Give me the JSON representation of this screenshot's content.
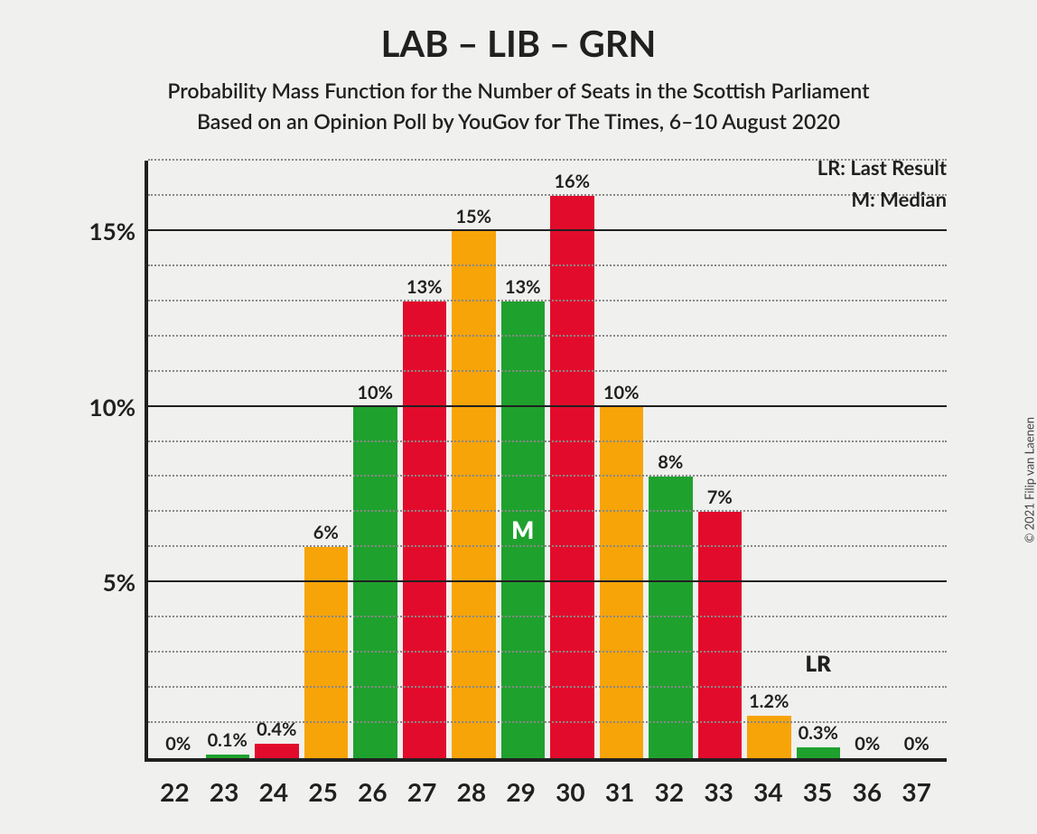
{
  "copyright": "© 2021 Filip van Laenen",
  "title": "LAB – LIB – GRN",
  "subtitle1": "Probability Mass Function for the Number of Seats in the Scottish Parliament",
  "subtitle2": "Based on an Opinion Poll by YouGov for The Times, 6–10 August 2020",
  "legend": {
    "lr": "LR: Last Result",
    "m": "M: Median"
  },
  "chart": {
    "type": "bar",
    "background_color": "#f0f0ee",
    "axis_color": "#202020",
    "text_color": "#202020",
    "minor_grid_color": "#888888",
    "colors": {
      "red": "#e30b2c",
      "orange": "#f7a409",
      "green": "#1fa12e"
    },
    "y": {
      "min": 0,
      "max": 17,
      "major_ticks": [
        5,
        10,
        15
      ],
      "minor_step": 1,
      "tick_labels": [
        "5%",
        "10%",
        "15%"
      ]
    },
    "categories": [
      "22",
      "23",
      "24",
      "25",
      "26",
      "27",
      "28",
      "29",
      "30",
      "31",
      "32",
      "33",
      "34",
      "35",
      "36",
      "37"
    ],
    "bars": [
      {
        "x": "22",
        "value": 0,
        "label": "0%",
        "color": "red"
      },
      {
        "x": "23",
        "value": 0.1,
        "label": "0.1%",
        "color": "green"
      },
      {
        "x": "24",
        "value": 0.4,
        "label": "0.4%",
        "color": "red"
      },
      {
        "x": "25",
        "value": 6,
        "label": "6%",
        "color": "orange"
      },
      {
        "x": "26",
        "value": 10,
        "label": "10%",
        "color": "green"
      },
      {
        "x": "27",
        "value": 13,
        "label": "13%",
        "color": "red"
      },
      {
        "x": "28",
        "value": 15,
        "label": "15%",
        "color": "orange"
      },
      {
        "x": "29",
        "value": 13,
        "label": "13%",
        "color": "green",
        "median": true
      },
      {
        "x": "30",
        "value": 16,
        "label": "16%",
        "color": "red"
      },
      {
        "x": "31",
        "value": 10,
        "label": "10%",
        "color": "orange"
      },
      {
        "x": "32",
        "value": 8,
        "label": "8%",
        "color": "green"
      },
      {
        "x": "33",
        "value": 7,
        "label": "7%",
        "color": "red"
      },
      {
        "x": "34",
        "value": 1.2,
        "label": "1.2%",
        "color": "orange"
      },
      {
        "x": "35",
        "value": 0.3,
        "label": "0.3%",
        "color": "green"
      },
      {
        "x": "36",
        "value": 0,
        "label": "0%",
        "color": "red"
      },
      {
        "x": "37",
        "value": 0,
        "label": "0%",
        "color": "orange"
      }
    ],
    "lr": {
      "at_index": 13,
      "label": "LR",
      "y_value": 2.3
    },
    "median_label": "M"
  }
}
